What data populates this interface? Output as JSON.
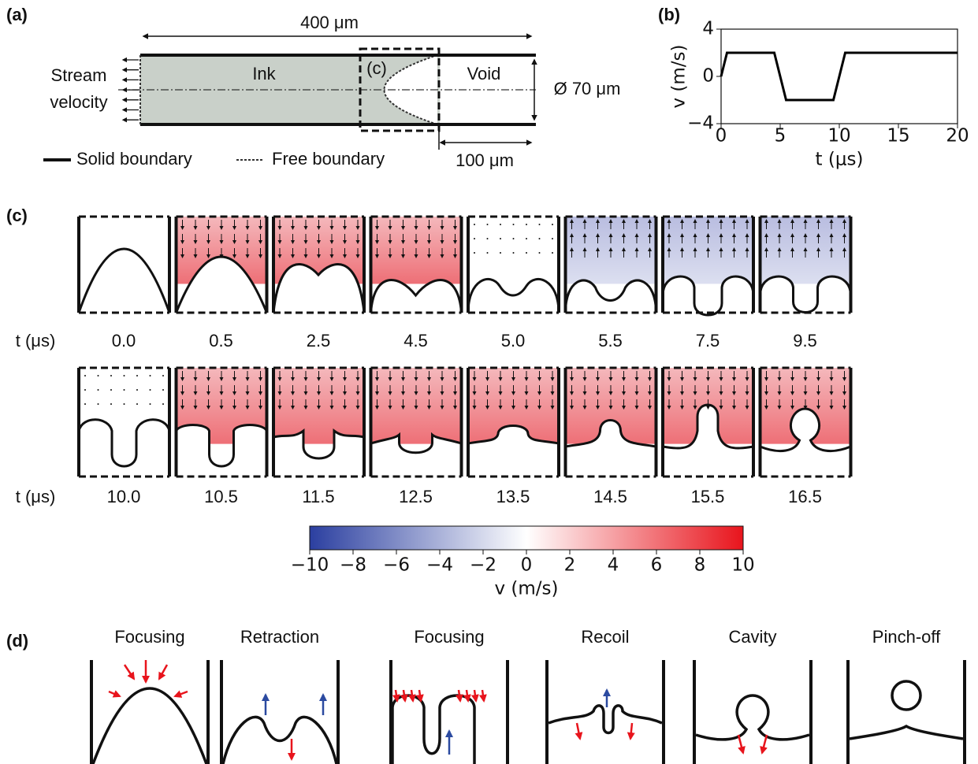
{
  "panel_a": {
    "label": "(a)",
    "length": "400 μm",
    "ink": "Ink",
    "void": "Void",
    "zoom": "(c)",
    "diameter": "Ø 70 μm",
    "stream": [
      "Stream",
      "velocity"
    ],
    "offset": "100 μm",
    "legend": [
      "Solid boundary",
      "Free boundary"
    ]
  },
  "chart_data": {
    "type": "line",
    "label": "(b)",
    "x": [
      0,
      0.5,
      4.5,
      5.5,
      9.5,
      10.5,
      20
    ],
    "values": [
      0,
      2,
      2,
      -2,
      -2,
      2,
      2
    ],
    "color": "#000000",
    "xlim": [
      0,
      20
    ],
    "ylim": [
      -4,
      4
    ],
    "xticks": [
      0,
      5,
      10,
      15,
      20
    ],
    "yticks": [
      {
        "value": -4,
        "label": "−4"
      },
      0,
      4
    ],
    "x_label": "t (μs)",
    "y_label": "v (m/s)"
  },
  "panel_c": {
    "label": "(c)",
    "time_label": "t (μs)",
    "rows": [
      [
        "0.0",
        "0.5",
        "2.5",
        "4.5",
        "5.0",
        "5.5",
        "7.5",
        "9.5"
      ],
      [
        "10.0",
        "10.5",
        "11.5",
        "12.5",
        "13.5",
        "14.5",
        "15.5",
        "16.5"
      ]
    ]
  },
  "colorbar": {
    "lim": [
      -10,
      10
    ],
    "ticks": [
      {
        "value": -10,
        "label": "−10"
      },
      {
        "value": -8,
        "label": "−8"
      },
      {
        "value": -6,
        "label": "−6"
      },
      {
        "value": -4,
        "label": "−4"
      },
      {
        "value": -2,
        "label": "−2"
      },
      0,
      2,
      4,
      6,
      8,
      10
    ],
    "label": "v (m/s)",
    "colors": [
      "#2b3fa0",
      "#ffffff",
      "#e8141c"
    ]
  },
  "panel_d": {
    "label": "(d)",
    "stages": [
      "Focusing",
      "Retraction",
      "Focusing",
      "Recoil",
      "Cavity",
      "Pinch-off"
    ]
  }
}
